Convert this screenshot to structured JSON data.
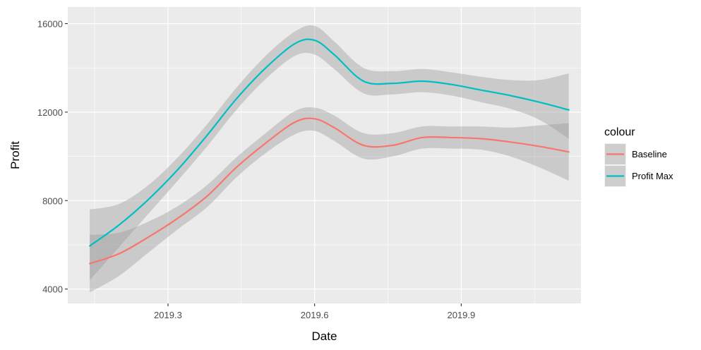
{
  "chart_data": {
    "type": "line",
    "xlabel": "Date",
    "ylabel": "Profit",
    "xlim": [
      2019.095,
      2020.145
    ],
    "ylim": [
      3350,
      16750
    ],
    "x_ticks": [
      2019.3,
      2019.6,
      2019.9
    ],
    "x_tick_labels": [
      "2019.3",
      "2019.6",
      "2019.9"
    ],
    "y_ticks": [
      4000,
      8000,
      12000,
      16000
    ],
    "y_tick_labels": [
      "4000",
      "8000",
      "12000",
      "16000"
    ],
    "grid": true,
    "legend": {
      "title": "colour",
      "position": "right"
    },
    "series": [
      {
        "name": "Baseline",
        "color": "#F8766D",
        "x": [
          2019.14,
          2019.2,
          2019.26,
          2019.32,
          2019.38,
          2019.44,
          2019.5,
          2019.56,
          2019.6,
          2019.64,
          2019.7,
          2019.76,
          2019.82,
          2019.88,
          2019.94,
          2020.0,
          2020.06,
          2020.12
        ],
        "y": [
          5150,
          5600,
          6350,
          7200,
          8200,
          9500,
          10600,
          11550,
          11700,
          11300,
          10500,
          10500,
          10850,
          10850,
          10800,
          10650,
          10450,
          10200
        ],
        "lower": [
          3850,
          4600,
          5650,
          6700,
          7700,
          9050,
          10150,
          11000,
          11150,
          10700,
          9900,
          10000,
          10350,
          10350,
          10300,
          10000,
          9500,
          8900
        ],
        "upper": [
          6450,
          6550,
          7050,
          7750,
          8700,
          9950,
          11050,
          12050,
          12200,
          11850,
          11050,
          11050,
          11350,
          11350,
          11350,
          11300,
          11400,
          11500
        ]
      },
      {
        "name": "Profit Max",
        "color": "#00BFC4",
        "x": [
          2019.14,
          2019.2,
          2019.26,
          2019.32,
          2019.38,
          2019.44,
          2019.5,
          2019.56,
          2019.6,
          2019.64,
          2019.7,
          2019.76,
          2019.82,
          2019.88,
          2019.94,
          2020.0,
          2020.06,
          2020.12
        ],
        "y": [
          5950,
          6900,
          8050,
          9400,
          10950,
          12600,
          14000,
          15100,
          15250,
          14600,
          13400,
          13300,
          13400,
          13250,
          13000,
          12750,
          12450,
          12100
        ],
        "lower": [
          4400,
          5900,
          7400,
          8900,
          10450,
          12100,
          13500,
          14550,
          14600,
          13950,
          12850,
          12800,
          12900,
          12750,
          12450,
          12150,
          11650,
          10800
        ],
        "upper": [
          7600,
          7850,
          8700,
          9950,
          11450,
          13100,
          14550,
          15650,
          15900,
          15200,
          14000,
          13850,
          13950,
          13800,
          13600,
          13450,
          13450,
          13750
        ]
      }
    ]
  }
}
